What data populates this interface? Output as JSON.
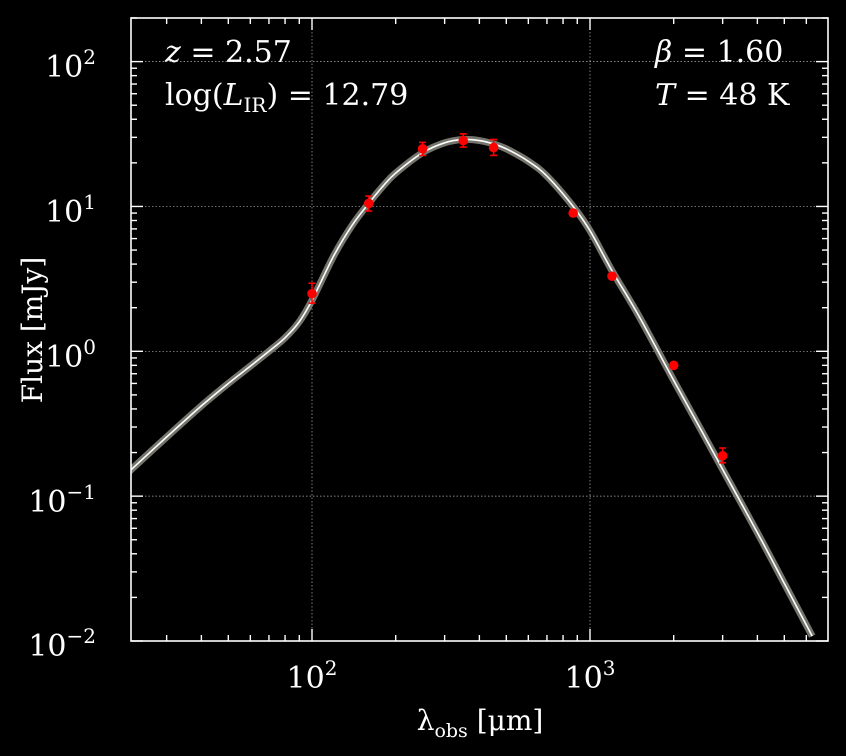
{
  "chart_data": {
    "type": "scatter",
    "xscale": "log",
    "yscale": "log",
    "xlim": [
      22,
      6300
    ],
    "ylim": [
      0.01,
      200
    ],
    "grid": true,
    "xlabel_symbol": "λ",
    "xlabel_sub": "obs",
    "xlabel_unit": "[μm]",
    "ylabel": "Flux [mJy]",
    "x_ticks": [
      {
        "base": "10",
        "exp": "2",
        "value": 100
      },
      {
        "base": "10",
        "exp": "3",
        "value": 1000
      }
    ],
    "y_ticks": [
      {
        "base": "10",
        "exp": "−2",
        "value": 0.01
      },
      {
        "base": "10",
        "exp": "−1",
        "value": 0.1
      },
      {
        "base": "10",
        "exp": "0",
        "value": 1
      },
      {
        "base": "10",
        "exp": "1",
        "value": 10
      },
      {
        "base": "10",
        "exp": "2",
        "value": 100
      }
    ],
    "annotations": {
      "redshift": {
        "symbol": "z",
        "value": "= 2.57"
      },
      "luminosity": {
        "prefix": "log(",
        "symbol": "L",
        "sub": "IR",
        "suffix": ")",
        "value": "= 12.79"
      },
      "beta": {
        "symbol": "β",
        "value": "= 1.60"
      },
      "temperature": {
        "symbol": "T",
        "value": "= 48 K"
      }
    },
    "data_points": [
      {
        "x": 100,
        "y": 2.5,
        "yerr_low": 0.35,
        "yerr_high": 0.45
      },
      {
        "x": 160,
        "y": 10.5,
        "yerr_low": 1.2,
        "yerr_high": 1.3
      },
      {
        "x": 250,
        "y": 25,
        "yerr_low": 2.5,
        "yerr_high": 2.7
      },
      {
        "x": 350,
        "y": 28.5,
        "yerr_low": 2.8,
        "yerr_high": 3.2
      },
      {
        "x": 450,
        "y": 25.5,
        "yerr_low": 3.0,
        "yerr_high": 3.5
      },
      {
        "x": 870,
        "y": 9.0,
        "yerr_low": 0.3,
        "yerr_high": 0.3
      },
      {
        "x": 1200,
        "y": 3.3,
        "yerr_low": 0.1,
        "yerr_high": 0.1
      },
      {
        "x": 2000,
        "y": 0.8,
        "yerr_low": 0.03,
        "yerr_high": 0.03
      },
      {
        "x": 3000,
        "y": 0.19,
        "yerr_low": 0.02,
        "yerr_high": 0.025
      }
    ],
    "model_curve": {
      "x": [
        22,
        30,
        40,
        50,
        60,
        70,
        80,
        90,
        100,
        120,
        140,
        160,
        180,
        200,
        250,
        300,
        350,
        400,
        450,
        500,
        600,
        700,
        870,
        1000,
        1200,
        1500,
        2000,
        2500,
        3000,
        4000,
        5000,
        6300
      ],
      "y": [
        0.148,
        0.256,
        0.42,
        0.6,
        0.79,
        1.0,
        1.24,
        1.6,
        2.25,
        4.6,
        7.5,
        10.5,
        13.8,
        17.0,
        23.5,
        27.5,
        29.0,
        28.5,
        27.0,
        25.0,
        20.5,
        16.2,
        10.0,
        6.8,
        3.6,
        1.75,
        0.63,
        0.29,
        0.153,
        0.056,
        0.025,
        0.0108
      ]
    },
    "colors": {
      "background": "#000000",
      "foreground": "#ffffff",
      "points": "#ff0000",
      "curve": "#ffffff",
      "band": "#8a8a80",
      "grid": "#b0b0b0"
    }
  }
}
